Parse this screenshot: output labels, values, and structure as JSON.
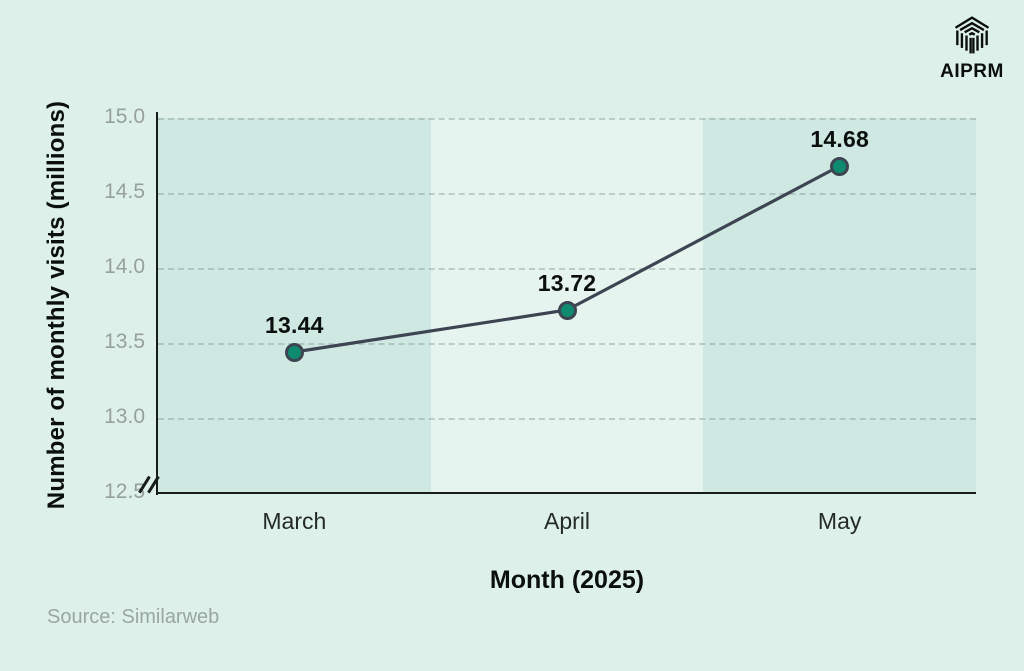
{
  "logo": {
    "brand": "AIPRM"
  },
  "source": {
    "text": "Source: Similarweb"
  },
  "chart_data": {
    "type": "line",
    "title": "",
    "categories": [
      "March",
      "April",
      "May"
    ],
    "values": [
      13.44,
      13.72,
      14.68
    ],
    "value_labels": [
      "13.44",
      "13.72",
      "14.68"
    ],
    "xlabel": "Month (2025)",
    "ylabel": "Number of monthly visits (millions)",
    "ylim": [
      12.5,
      15.0
    ],
    "yticks": [
      "15.0",
      "14.5",
      "14.0",
      "13.5",
      "13.0",
      "12.5"
    ],
    "ytick_values": [
      15.0,
      14.5,
      14.0,
      13.5,
      13.0,
      12.5
    ],
    "grid": "horizontal-dashed",
    "legend": "none",
    "axis_break_bottom_left": true,
    "alternating_column_bands": true,
    "colors": {
      "background": "#def0ea",
      "band_dark": "#cfe8e1",
      "band_light": "#e6f4f0",
      "line": "#3d4452",
      "point_fill": "#0e8a6e",
      "point_stroke": "#3d4452",
      "axis": "#161c1a",
      "tick_label": "#96a19d",
      "text_dark": "#0b0f0e",
      "source_text": "#9aa6a1"
    }
  }
}
